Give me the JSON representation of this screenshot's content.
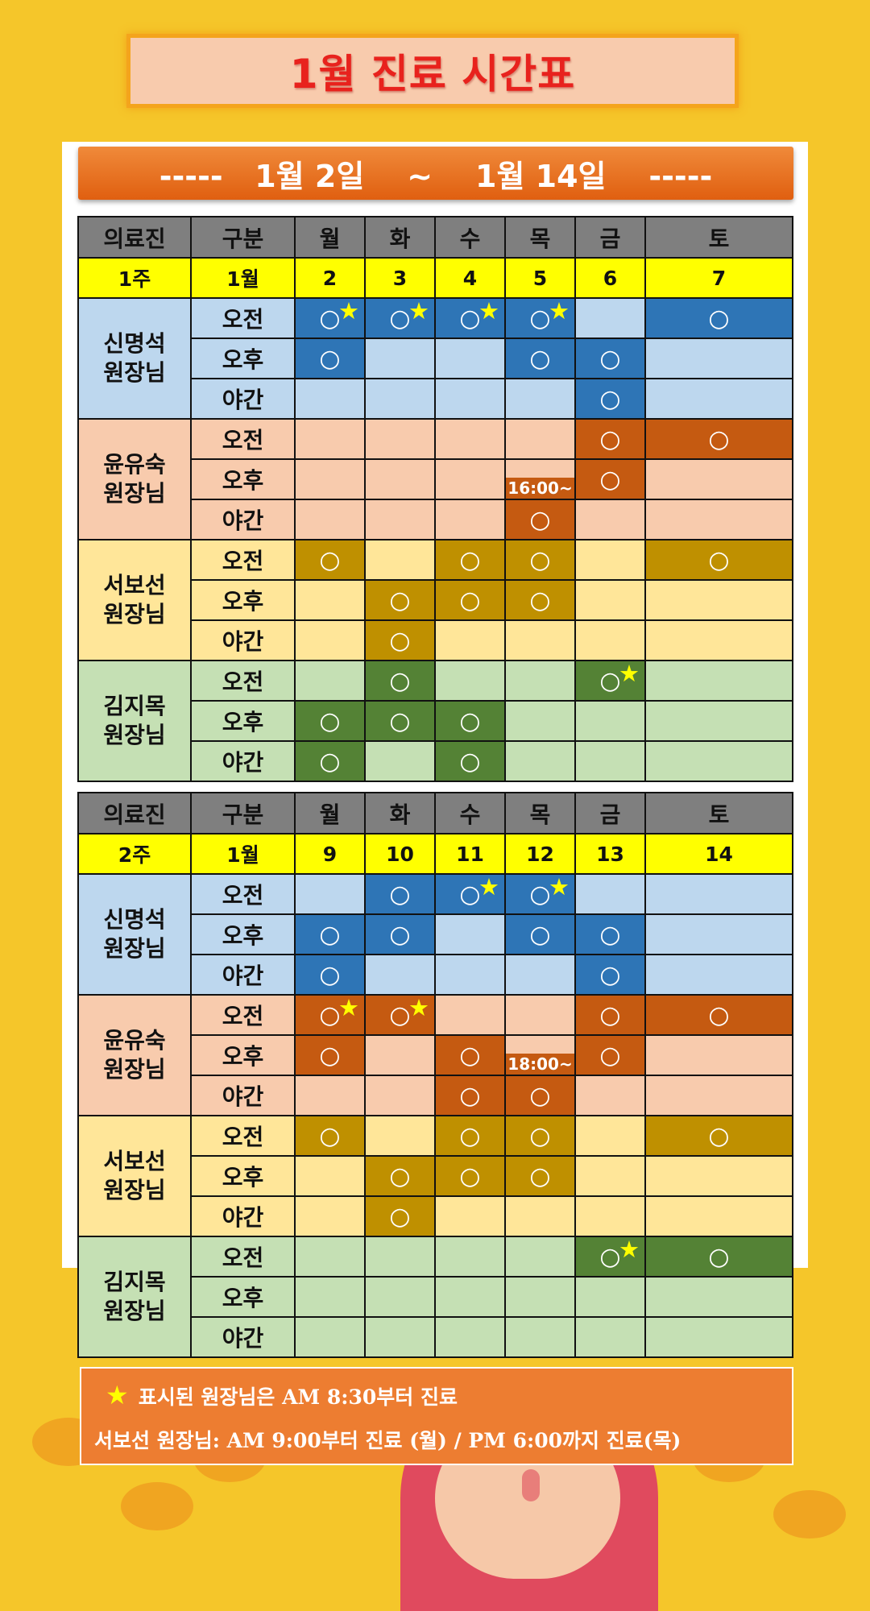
{
  "title": "1월 진료 시간표",
  "date_range": "-----   1월 2일    ~    1월 14일    -----",
  "colors": {
    "blue": {
      "on": "#2e75b6",
      "off": "#bdd7ee"
    },
    "orange": {
      "on": "#c55a11",
      "off": "#f8cbad"
    },
    "yellow": {
      "on": "#bf9000",
      "off": "#ffe699"
    },
    "green": {
      "on": "#548235",
      "off": "#c5e0b4"
    }
  },
  "mark_symbol": "○",
  "star_symbol": "★",
  "weeks": [
    {
      "header": [
        "의료진",
        "구분",
        "월",
        "화",
        "수",
        "목",
        "금",
        "토"
      ],
      "sub": [
        "1주",
        "1월",
        "2",
        "3",
        "4",
        "5",
        "6",
        "7"
      ],
      "doctors": [
        {
          "name": "신명석\n원장님",
          "color": "blue",
          "rows": [
            {
              "label": "오전",
              "cells": [
                "OS",
                "OS",
                "OS",
                "OS",
                "",
                "O"
              ]
            },
            {
              "label": "오후",
              "cells": [
                "O",
                "",
                "",
                "O",
                "O",
                ""
              ]
            },
            {
              "label": "야간",
              "cells": [
                "",
                "",
                "",
                "",
                "O",
                ""
              ]
            }
          ]
        },
        {
          "name": "윤유숙\n원장님",
          "color": "orange",
          "rows": [
            {
              "label": "오전",
              "cells": [
                "",
                "",
                "",
                "",
                "O",
                "O"
              ]
            },
            {
              "label": "오후",
              "cells": [
                "",
                "",
                "",
                "T",
                "O",
                ""
              ]
            },
            {
              "label": "야간",
              "cells": [
                "",
                "",
                "",
                "O",
                "",
                ""
              ]
            }
          ]
        },
        {
          "name": "서보선\n원장님",
          "color": "yellow",
          "rows": [
            {
              "label": "오전",
              "cells": [
                "O",
                "",
                "O",
                "O",
                "",
                "O"
              ]
            },
            {
              "label": "오후",
              "cells": [
                "",
                "O",
                "O",
                "O",
                "",
                ""
              ]
            },
            {
              "label": "야간",
              "cells": [
                "",
                "O",
                "",
                "",
                "",
                ""
              ]
            }
          ]
        },
        {
          "name": "김지목\n원장님",
          "color": "green",
          "rows": [
            {
              "label": "오전",
              "cells": [
                "",
                "O",
                "",
                "",
                "OS",
                ""
              ]
            },
            {
              "label": "오후",
              "cells": [
                "O",
                "O",
                "O",
                "",
                "",
                ""
              ]
            },
            {
              "label": "야간",
              "cells": [
                "O",
                "",
                "O",
                "",
                "",
                ""
              ]
            }
          ]
        }
      ],
      "time_note": "16:00~"
    },
    {
      "header": [
        "의료진",
        "구분",
        "월",
        "화",
        "수",
        "목",
        "금",
        "토"
      ],
      "sub": [
        "2주",
        "1월",
        "9",
        "10",
        "11",
        "12",
        "13",
        "14"
      ],
      "doctors": [
        {
          "name": "신명석\n원장님",
          "color": "blue",
          "rows": [
            {
              "label": "오전",
              "cells": [
                "",
                "O",
                "OS",
                "OS",
                "",
                ""
              ]
            },
            {
              "label": "오후",
              "cells": [
                "O",
                "O",
                "",
                "O",
                "O",
                ""
              ]
            },
            {
              "label": "야간",
              "cells": [
                "O",
                "",
                "",
                "",
                "O",
                ""
              ]
            }
          ]
        },
        {
          "name": "윤유숙\n원장님",
          "color": "orange",
          "rows": [
            {
              "label": "오전",
              "cells": [
                "OS",
                "OS",
                "",
                "",
                "O",
                "O"
              ]
            },
            {
              "label": "오후",
              "cells": [
                "O",
                "",
                "O",
                "T",
                "O",
                ""
              ]
            },
            {
              "label": "야간",
              "cells": [
                "",
                "",
                "O",
                "O",
                "",
                ""
              ]
            }
          ]
        },
        {
          "name": "서보선\n원장님",
          "color": "yellow",
          "rows": [
            {
              "label": "오전",
              "cells": [
                "O",
                "",
                "O",
                "O",
                "",
                "O"
              ]
            },
            {
              "label": "오후",
              "cells": [
                "",
                "O",
                "O",
                "O",
                "",
                ""
              ]
            },
            {
              "label": "야간",
              "cells": [
                "",
                "O",
                "",
                "",
                "",
                ""
              ]
            }
          ]
        },
        {
          "name": "김지목\n원장님",
          "color": "green",
          "rows": [
            {
              "label": "오전",
              "cells": [
                "",
                "",
                "",
                "",
                "OS",
                "O"
              ]
            },
            {
              "label": "오후",
              "cells": [
                "",
                "",
                "",
                "",
                "",
                ""
              ]
            },
            {
              "label": "야간",
              "cells": [
                "",
                "",
                "",
                "",
                "",
                ""
              ]
            }
          ]
        }
      ],
      "time_note": "18:00~"
    }
  ],
  "notes": {
    "star": "★",
    "line1": "표시된 원장님은 AM 8:30부터 진료",
    "line2": "서보선 원장님: AM 9:00부터 진료 (월)  / PM 6:00까지 진료(목)"
  }
}
